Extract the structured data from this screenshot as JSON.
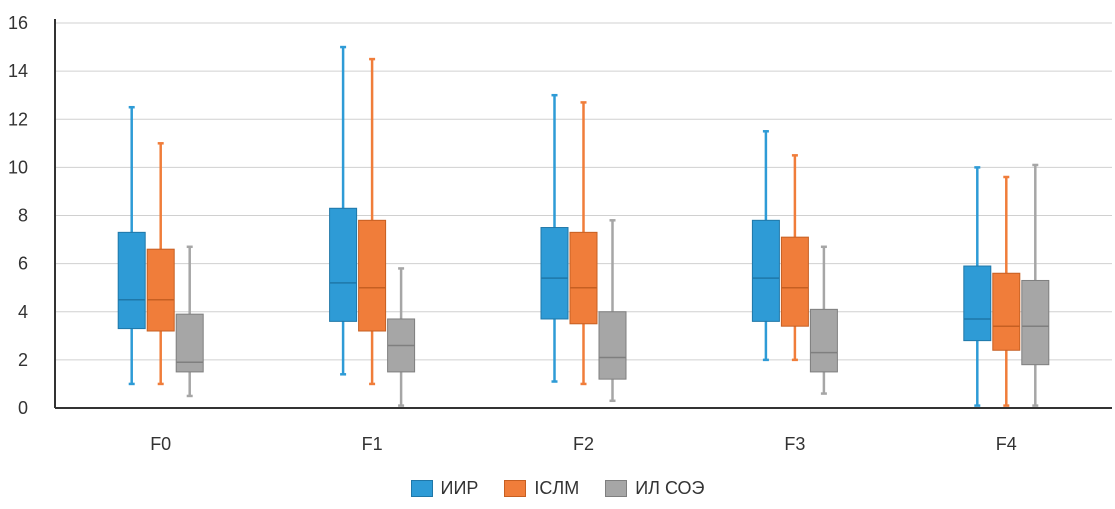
{
  "chart_data": {
    "type": "boxplot",
    "title": "",
    "xlabel": "",
    "ylabel": "",
    "ylim": [
      0,
      16
    ],
    "yticks": [
      0,
      2,
      4,
      6,
      8,
      10,
      12,
      14,
      16
    ],
    "grid": true,
    "legend_position": "bottom",
    "categories": [
      "F0",
      "F1",
      "F2",
      "F3",
      "F4"
    ],
    "series": [
      {
        "name": "ИИР",
        "color": "#2E9BD6",
        "edge": "#1F77A8",
        "boxes": [
          {
            "min": 1.0,
            "q1": 3.3,
            "median": 4.5,
            "q3": 7.3,
            "max": 12.5
          },
          {
            "min": 1.4,
            "q1": 3.6,
            "median": 5.2,
            "q3": 8.3,
            "max": 15.0
          },
          {
            "min": 1.1,
            "q1": 3.7,
            "median": 5.4,
            "q3": 7.5,
            "max": 13.0
          },
          {
            "min": 2.0,
            "q1": 3.6,
            "median": 5.4,
            "q3": 7.8,
            "max": 11.5
          },
          {
            "min": 0.1,
            "q1": 2.8,
            "median": 3.7,
            "q3": 5.9,
            "max": 10.0
          }
        ]
      },
      {
        "name": "ICЛМ",
        "color": "#F07D3A",
        "edge": "#C65F22",
        "boxes": [
          {
            "min": 1.0,
            "q1": 3.2,
            "median": 4.5,
            "q3": 6.6,
            "max": 11.0
          },
          {
            "min": 1.0,
            "q1": 3.2,
            "median": 5.0,
            "q3": 7.8,
            "max": 14.5
          },
          {
            "min": 1.0,
            "q1": 3.5,
            "median": 5.0,
            "q3": 7.3,
            "max": 12.7
          },
          {
            "min": 2.0,
            "q1": 3.4,
            "median": 5.0,
            "q3": 7.1,
            "max": 10.5
          },
          {
            "min": 0.1,
            "q1": 2.4,
            "median": 3.4,
            "q3": 5.6,
            "max": 9.6
          }
        ]
      },
      {
        "name": "ИЛ СОЭ",
        "color": "#A6A6A6",
        "edge": "#7F7F7F",
        "boxes": [
          {
            "min": 0.5,
            "q1": 1.5,
            "median": 1.9,
            "q3": 3.9,
            "max": 6.7
          },
          {
            "min": 0.1,
            "q1": 1.5,
            "median": 2.6,
            "q3": 3.7,
            "max": 5.8
          },
          {
            "min": 0.3,
            "q1": 1.2,
            "median": 2.1,
            "q3": 4.0,
            "max": 7.8
          },
          {
            "min": 0.6,
            "q1": 1.5,
            "median": 2.3,
            "q3": 4.1,
            "max": 6.7
          },
          {
            "min": 0.1,
            "q1": 1.8,
            "median": 3.4,
            "q3": 5.3,
            "max": 10.1
          }
        ]
      }
    ]
  }
}
